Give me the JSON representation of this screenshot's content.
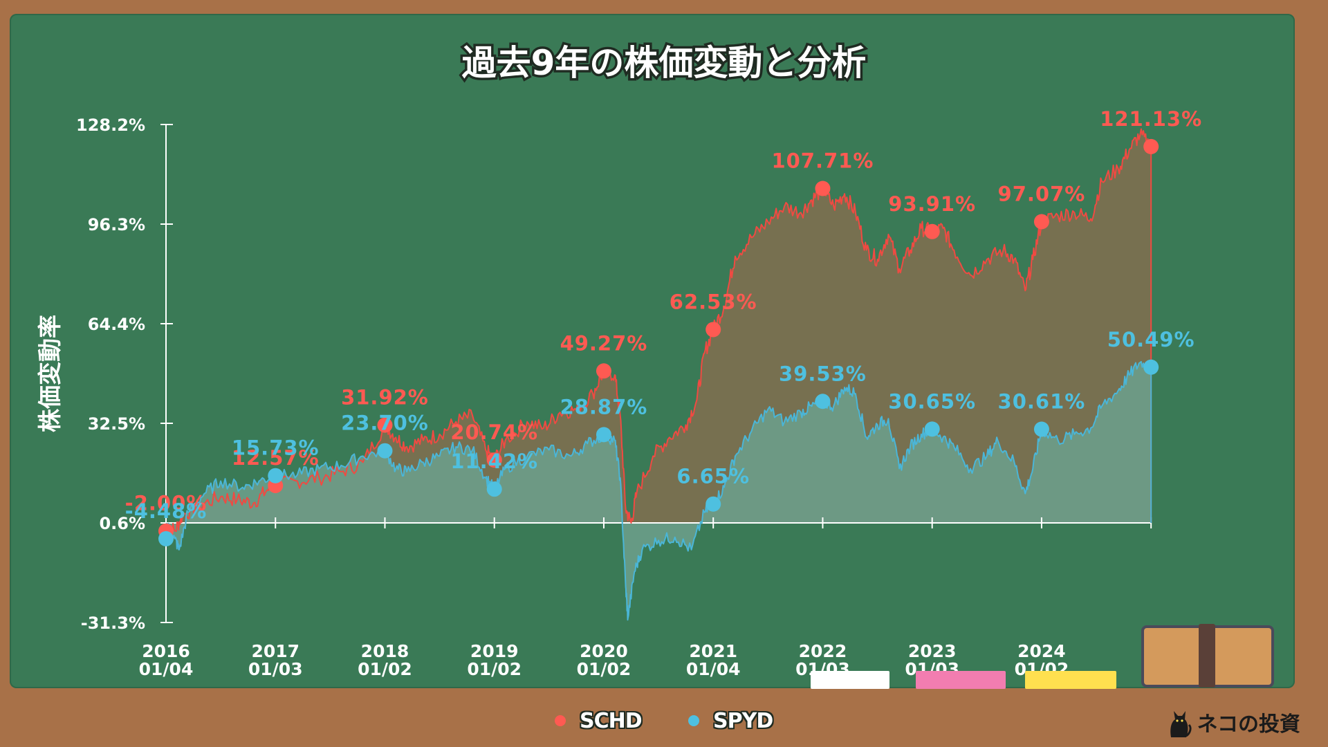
{
  "chart_data": {
    "type": "area",
    "title": "過去9年の株価変動と分析",
    "ylabel": "株価変動率",
    "ylim": [
      -31.3,
      128.2
    ],
    "y_ticks": [
      "128.2%",
      "96.3%",
      "64.4%",
      "32.5%",
      "0.6%",
      "-31.3%"
    ],
    "y_tick_values": [
      128.2,
      96.3,
      64.4,
      32.5,
      0.6,
      -31.3
    ],
    "x_tick_years": [
      "2016",
      "2017",
      "2018",
      "2019",
      "2020",
      "2021",
      "2022",
      "2023",
      "2024"
    ],
    "x_tick_dates": [
      "01/04",
      "01/03",
      "01/02",
      "01/02",
      "01/02",
      "01/04",
      "01/03",
      "01/03",
      "01/02"
    ],
    "x_range": [
      2016.0,
      2025.1
    ],
    "baseline": 0.6,
    "legend_position": "bottom-center",
    "series": [
      {
        "name": "SCHD",
        "color": "#ff5a52",
        "line_color": "#f04a42",
        "fill_color": "#7a7050",
        "points": [
          [
            2016.0,
            0.5
          ],
          [
            2016.08,
            -2.0
          ],
          [
            2016.15,
            3.0
          ],
          [
            2016.3,
            6.0
          ],
          [
            2016.5,
            9.0
          ],
          [
            2016.65,
            8.0
          ],
          [
            2016.8,
            7.0
          ],
          [
            2016.92,
            11.0
          ],
          [
            2017.0,
            12.57
          ],
          [
            2017.2,
            14.0
          ],
          [
            2017.4,
            15.0
          ],
          [
            2017.6,
            17.0
          ],
          [
            2017.8,
            20.0
          ],
          [
            2018.0,
            31.92
          ],
          [
            2018.1,
            28.0
          ],
          [
            2018.2,
            25.0
          ],
          [
            2018.35,
            27.0
          ],
          [
            2018.5,
            29.0
          ],
          [
            2018.65,
            33.0
          ],
          [
            2018.8,
            35.0
          ],
          [
            2018.92,
            24.0
          ],
          [
            2019.0,
            20.74
          ],
          [
            2019.1,
            27.0
          ],
          [
            2019.3,
            33.0
          ],
          [
            2019.45,
            31.0
          ],
          [
            2019.6,
            36.0
          ],
          [
            2019.75,
            37.0
          ],
          [
            2019.9,
            42.0
          ],
          [
            2020.0,
            49.27
          ],
          [
            2020.1,
            48.0
          ],
          [
            2020.15,
            35.0
          ],
          [
            2020.2,
            5.0
          ],
          [
            2020.25,
            0.6
          ],
          [
            2020.3,
            10.0
          ],
          [
            2020.45,
            22.0
          ],
          [
            2020.6,
            28.0
          ],
          [
            2020.75,
            32.0
          ],
          [
            2020.85,
            40.0
          ],
          [
            2020.92,
            55.0
          ],
          [
            2021.0,
            62.53
          ],
          [
            2021.1,
            70.0
          ],
          [
            2021.2,
            86.0
          ],
          [
            2021.35,
            92.0
          ],
          [
            2021.5,
            97.0
          ],
          [
            2021.65,
            102.0
          ],
          [
            2021.8,
            100.0
          ],
          [
            2021.9,
            104.0
          ],
          [
            2022.0,
            107.71
          ],
          [
            2022.1,
            102.0
          ],
          [
            2022.2,
            106.0
          ],
          [
            2022.3,
            100.0
          ],
          [
            2022.4,
            88.0
          ],
          [
            2022.5,
            85.0
          ],
          [
            2022.6,
            93.0
          ],
          [
            2022.7,
            82.0
          ],
          [
            2022.8,
            88.0
          ],
          [
            2022.9,
            95.0
          ],
          [
            2023.0,
            93.91
          ],
          [
            2023.1,
            95.0
          ],
          [
            2023.2,
            88.0
          ],
          [
            2023.35,
            80.0
          ],
          [
            2023.5,
            85.0
          ],
          [
            2023.65,
            88.0
          ],
          [
            2023.75,
            85.0
          ],
          [
            2023.85,
            75.0
          ],
          [
            2023.92,
            85.0
          ],
          [
            2024.0,
            97.07
          ],
          [
            2024.15,
            99.0
          ],
          [
            2024.3,
            100.0
          ],
          [
            2024.45,
            98.0
          ],
          [
            2024.55,
            110.0
          ],
          [
            2024.7,
            114.0
          ],
          [
            2024.8,
            120.0
          ],
          [
            2024.9,
            125.0
          ],
          [
            2025.0,
            121.13
          ]
        ],
        "labels": [
          {
            "x": 2016.0,
            "y": -2.0,
            "text": "-2.00%"
          },
          {
            "x": 2017.0,
            "y": 12.57,
            "text": "12.57%"
          },
          {
            "x": 2018.0,
            "y": 31.92,
            "text": "31.92%"
          },
          {
            "x": 2019.0,
            "y": 20.74,
            "text": "20.74%"
          },
          {
            "x": 2020.0,
            "y": 49.27,
            "text": "49.27%"
          },
          {
            "x": 2021.0,
            "y": 62.53,
            "text": "62.53%"
          },
          {
            "x": 2022.0,
            "y": 107.71,
            "text": "107.71%"
          },
          {
            "x": 2023.0,
            "y": 93.91,
            "text": "93.91%"
          },
          {
            "x": 2024.0,
            "y": 97.07,
            "text": "97.07%"
          },
          {
            "x": 2025.0,
            "y": 121.13,
            "text": "121.13%"
          }
        ]
      },
      {
        "name": "SPYD",
        "color": "#4ec0e0",
        "line_color": "#4ab6d8",
        "fill_color": "#6c9d89",
        "points": [
          [
            2016.0,
            0.5
          ],
          [
            2016.08,
            -4.48
          ],
          [
            2016.12,
            -8.0
          ],
          [
            2016.2,
            4.0
          ],
          [
            2016.35,
            10.0
          ],
          [
            2016.5,
            14.0
          ],
          [
            2016.7,
            12.0
          ],
          [
            2016.85,
            14.0
          ],
          [
            2017.0,
            15.73
          ],
          [
            2017.2,
            16.0
          ],
          [
            2017.4,
            18.0
          ],
          [
            2017.6,
            19.0
          ],
          [
            2017.8,
            22.0
          ],
          [
            2018.0,
            23.7
          ],
          [
            2018.1,
            18.0
          ],
          [
            2018.2,
            17.0
          ],
          [
            2018.35,
            20.0
          ],
          [
            2018.5,
            22.0
          ],
          [
            2018.65,
            25.0
          ],
          [
            2018.8,
            24.0
          ],
          [
            2018.92,
            15.0
          ],
          [
            2019.0,
            11.42
          ],
          [
            2019.1,
            18.0
          ],
          [
            2019.3,
            22.0
          ],
          [
            2019.5,
            24.0
          ],
          [
            2019.7,
            22.0
          ],
          [
            2019.85,
            26.0
          ],
          [
            2020.0,
            28.87
          ],
          [
            2020.1,
            27.0
          ],
          [
            2020.15,
            15.0
          ],
          [
            2020.2,
            -20.0
          ],
          [
            2020.22,
            -30.0
          ],
          [
            2020.28,
            -15.0
          ],
          [
            2020.35,
            -8.0
          ],
          [
            2020.5,
            -5.0
          ],
          [
            2020.65,
            -4.0
          ],
          [
            2020.8,
            -8.0
          ],
          [
            2020.92,
            4.0
          ],
          [
            2021.0,
            6.65
          ],
          [
            2021.1,
            12.0
          ],
          [
            2021.2,
            22.0
          ],
          [
            2021.35,
            30.0
          ],
          [
            2021.5,
            37.0
          ],
          [
            2021.65,
            33.0
          ],
          [
            2021.8,
            36.0
          ],
          [
            2021.9,
            38.0
          ],
          [
            2022.0,
            39.53
          ],
          [
            2022.1,
            38.0
          ],
          [
            2022.2,
            44.0
          ],
          [
            2022.3,
            42.0
          ],
          [
            2022.4,
            28.0
          ],
          [
            2022.5,
            32.0
          ],
          [
            2022.6,
            34.0
          ],
          [
            2022.7,
            18.0
          ],
          [
            2022.8,
            25.0
          ],
          [
            2022.9,
            29.0
          ],
          [
            2023.0,
            30.65
          ],
          [
            2023.1,
            28.0
          ],
          [
            2023.2,
            25.0
          ],
          [
            2023.35,
            18.0
          ],
          [
            2023.5,
            22.0
          ],
          [
            2023.6,
            27.0
          ],
          [
            2023.75,
            20.0
          ],
          [
            2023.85,
            10.0
          ],
          [
            2023.92,
            18.0
          ],
          [
            2024.0,
            30.61
          ],
          [
            2024.15,
            27.0
          ],
          [
            2024.3,
            29.0
          ],
          [
            2024.45,
            31.0
          ],
          [
            2024.55,
            38.0
          ],
          [
            2024.7,
            43.0
          ],
          [
            2024.8,
            48.0
          ],
          [
            2024.9,
            52.0
          ],
          [
            2025.0,
            50.49
          ]
        ],
        "labels": [
          {
            "x": 2016.0,
            "y": -4.48,
            "text": "-4.48%"
          },
          {
            "x": 2017.0,
            "y": 15.73,
            "text": "15.73%"
          },
          {
            "x": 2018.0,
            "y": 23.7,
            "text": "23.70%"
          },
          {
            "x": 2019.0,
            "y": 11.42,
            "text": "11.42%"
          },
          {
            "x": 2020.0,
            "y": 28.87,
            "text": "28.87%"
          },
          {
            "x": 2021.0,
            "y": 6.65,
            "text": "6.65%"
          },
          {
            "x": 2022.0,
            "y": 39.53,
            "text": "39.53%"
          },
          {
            "x": 2023.0,
            "y": 30.65,
            "text": "30.65%"
          },
          {
            "x": 2024.0,
            "y": 30.61,
            "text": "30.61%"
          },
          {
            "x": 2025.0,
            "y": 50.49,
            "text": "50.49%"
          }
        ]
      }
    ]
  },
  "brand": {
    "text": "ネコの投資",
    "icon": "black-cat-icon"
  },
  "colors": {
    "board": "#3a7a56",
    "frame": "#a87148",
    "chalk_white": "#ffffff",
    "chalk_pink": "#f27db0",
    "chalk_yellow": "#ffe04f",
    "eraser": "#d49a5c"
  }
}
